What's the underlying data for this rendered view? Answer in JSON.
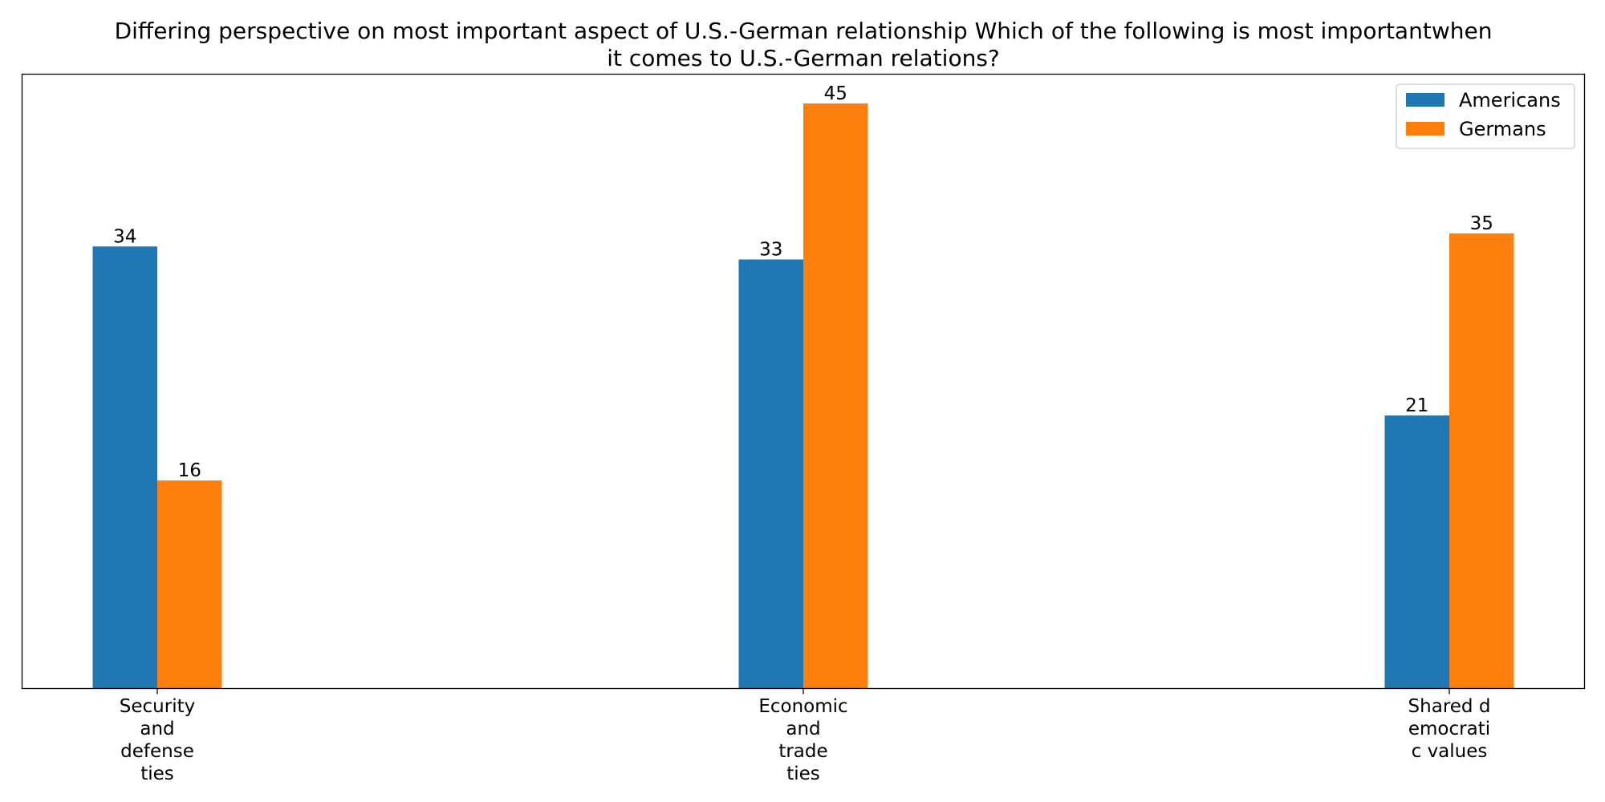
{
  "chart_data": {
    "type": "bar",
    "title_lines": [
      "Differing perspective on most important aspect of U.S.-German relationship Which of the following is most importantwhen",
      "it comes to U.S.-German relations?"
    ],
    "categories": [
      "Security and defense ties",
      "Economic and trade ties",
      "Shared democratic values"
    ],
    "category_label_lines": [
      [
        "Security",
        "and",
        "defense",
        "ties"
      ],
      [
        "Economic",
        "and",
        "trade",
        "ties"
      ],
      [
        "Shared d",
        "emocrati",
        "c values"
      ]
    ],
    "series": [
      {
        "name": "Americans",
        "color": "#1f77b4",
        "values": [
          34,
          33,
          21
        ]
      },
      {
        "name": "Germans",
        "color": "#ff7f0e",
        "values": [
          16,
          45,
          35
        ]
      }
    ],
    "ylim": [
      0,
      47.25
    ],
    "grid": false,
    "y_axis_ticks_shown": false,
    "legend_placement": "top-right",
    "data_labels": true
  }
}
